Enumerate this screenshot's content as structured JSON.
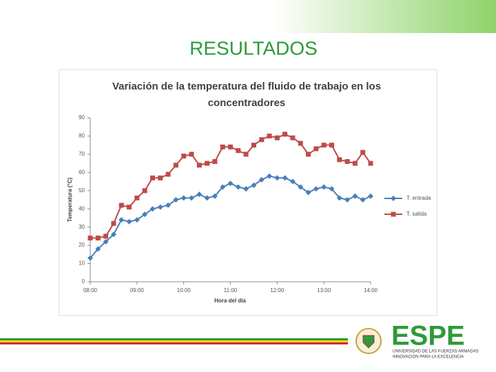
{
  "slide_title": "RESULTADOS",
  "logo": {
    "name": "ESPE",
    "line1": "UNIVERSIDAD DE LAS FUERZAS ARMADAS",
    "line2": "INNOVACIÓN PARA LA EXCELENCIA"
  },
  "chart_data": {
    "type": "line",
    "title": [
      "Variación de la temperatura del fluido de trabajo en los",
      "concentradores"
    ],
    "x_label": "Hora del día",
    "y_label": "Temperatura (°C)",
    "x": [
      480,
      490,
      500,
      510,
      520,
      530,
      540,
      550,
      560,
      570,
      580,
      590,
      600,
      610,
      620,
      630,
      640,
      650,
      660,
      670,
      680,
      690,
      700,
      710,
      720,
      730,
      740,
      750,
      760,
      770,
      780,
      790,
      800,
      810,
      820,
      830,
      840
    ],
    "series": [
      {
        "name": "T. entrada",
        "color": "#4a7ebb",
        "marker": "diamond",
        "values": [
          13,
          18,
          22,
          26,
          34,
          33,
          34,
          37,
          40,
          41,
          42,
          45,
          46,
          46,
          48,
          46,
          47,
          52,
          54,
          52,
          51,
          53,
          56,
          58,
          57,
          57,
          55,
          52,
          49,
          51,
          52,
          51,
          46,
          45,
          47,
          45,
          47
        ]
      },
      {
        "name": "T. salida",
        "color": "#be4b48",
        "marker": "square",
        "values": [
          24,
          24,
          25,
          32,
          42,
          41,
          46,
          50,
          57,
          57,
          59,
          64,
          69,
          70,
          64,
          65,
          66,
          74,
          74,
          72,
          70,
          75,
          78,
          80,
          79,
          81,
          79,
          76,
          70,
          73,
          75,
          75,
          67,
          66,
          65,
          71,
          65
        ]
      }
    ],
    "xlim": [
      480,
      840
    ],
    "xticks": [
      {
        "value": 480,
        "label": "08:00"
      },
      {
        "value": 540,
        "label": "09:00"
      },
      {
        "value": 600,
        "label": "10:00"
      },
      {
        "value": 660,
        "label": "11:00"
      },
      {
        "value": 720,
        "label": "12:00"
      },
      {
        "value": 780,
        "label": "13:00"
      },
      {
        "value": 840,
        "label": "14:00"
      }
    ],
    "ylim": [
      0,
      90
    ],
    "yticks": [
      0,
      10,
      20,
      30,
      40,
      50,
      60,
      70,
      80,
      90
    ],
    "grid": false,
    "legend": "right"
  }
}
